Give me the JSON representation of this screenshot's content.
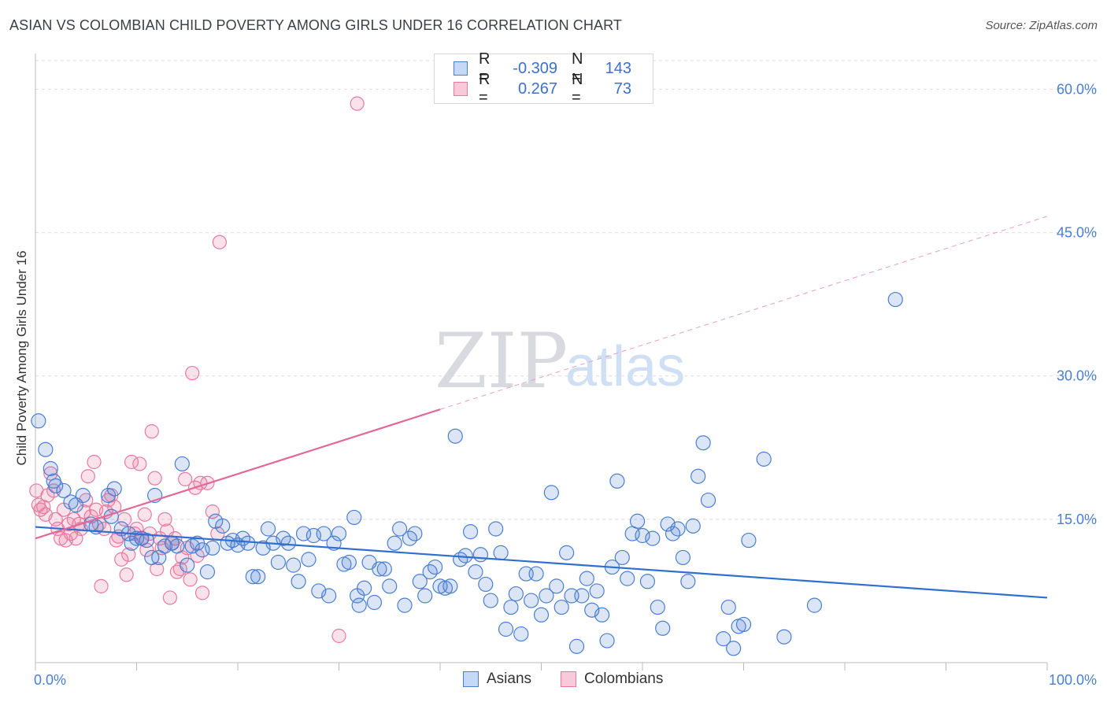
{
  "header": {
    "title": "ASIAN VS COLOMBIAN CHILD POVERTY AMONG GIRLS UNDER 16 CORRELATION CHART",
    "source": "Source: ZipAtlas.com"
  },
  "watermark": {
    "zip": "ZIP",
    "atlas": "atlas"
  },
  "legend": {
    "rows": [
      {
        "r_label": "R =",
        "r_value": "-0.309",
        "n_label": "N =",
        "n_value": "143",
        "color": "#4a7fd0"
      },
      {
        "r_label": "R =",
        "r_value": "0.267",
        "n_label": "N =",
        "n_value": "73",
        "color": "#e87aa0"
      }
    ]
  },
  "bottom_legend": [
    {
      "label": "Asians",
      "color": "#4a7fd0"
    },
    {
      "label": "Colombians",
      "color": "#e87aa0"
    }
  ],
  "chart_data": {
    "type": "scatter",
    "title": "ASIAN VS COLOMBIAN CHILD POVERTY AMONG GIRLS UNDER 16 CORRELATION CHART",
    "ylabel": "Child Poverty Among Girls Under 16",
    "xlabel": "",
    "xlim": [
      0,
      100
    ],
    "ylim": [
      0,
      63
    ],
    "x_tick_labels": [
      "0.0%",
      "100.0%"
    ],
    "y_ticks": [
      15,
      30,
      45,
      60
    ],
    "y_tick_labels": [
      "15.0%",
      "30.0%",
      "45.0%",
      "60.0%"
    ],
    "grid": true,
    "legend_position": "top-center",
    "colors": {
      "asians": "#4a7fd0",
      "colombians": "#e87aa0"
    },
    "series": [
      {
        "name": "Asians",
        "r": -0.309,
        "n": 143,
        "trend": {
          "x": [
            0,
            100
          ],
          "y": [
            14.2,
            6.8
          ]
        },
        "points": [
          [
            0.3,
            25.3
          ],
          [
            1.0,
            22.3
          ],
          [
            1.5,
            20.3
          ],
          [
            1.8,
            19.0
          ],
          [
            2.0,
            18.5
          ],
          [
            2.8,
            18.0
          ],
          [
            3.5,
            16.8
          ],
          [
            4.0,
            16.5
          ],
          [
            4.7,
            17.5
          ],
          [
            5.5,
            14.5
          ],
          [
            6.0,
            14.2
          ],
          [
            7.2,
            17.5
          ],
          [
            7.5,
            15.3
          ],
          [
            7.8,
            18.2
          ],
          [
            8.5,
            14.0
          ],
          [
            9.2,
            13.5
          ],
          [
            9.5,
            12.5
          ],
          [
            10.0,
            13.0
          ],
          [
            10.5,
            13.0
          ],
          [
            11.0,
            12.8
          ],
          [
            11.5,
            11.0
          ],
          [
            11.8,
            17.5
          ],
          [
            12.2,
            11.0
          ],
          [
            12.8,
            12.2
          ],
          [
            13.5,
            12.5
          ],
          [
            14.0,
            12.2
          ],
          [
            14.5,
            20.8
          ],
          [
            15.0,
            10.2
          ],
          [
            15.5,
            12.2
          ],
          [
            16.0,
            12.5
          ],
          [
            16.5,
            11.8
          ],
          [
            17.0,
            9.5
          ],
          [
            17.5,
            12.0
          ],
          [
            17.8,
            14.8
          ],
          [
            18.5,
            14.3
          ],
          [
            19.0,
            12.5
          ],
          [
            19.5,
            12.8
          ],
          [
            20.0,
            12.3
          ],
          [
            20.5,
            13.0
          ],
          [
            21.0,
            12.5
          ],
          [
            21.5,
            9.0
          ],
          [
            22.0,
            9.0
          ],
          [
            22.5,
            12.0
          ],
          [
            23.0,
            14.0
          ],
          [
            23.5,
            12.5
          ],
          [
            24.0,
            10.5
          ],
          [
            24.5,
            13.0
          ],
          [
            25.0,
            12.5
          ],
          [
            25.5,
            10.2
          ],
          [
            26.0,
            8.5
          ],
          [
            26.5,
            13.5
          ],
          [
            27.0,
            10.8
          ],
          [
            27.5,
            13.3
          ],
          [
            28.0,
            7.5
          ],
          [
            28.5,
            13.5
          ],
          [
            29.0,
            7.0
          ],
          [
            29.5,
            12.5
          ],
          [
            30.0,
            13.5
          ],
          [
            30.5,
            10.3
          ],
          [
            31.0,
            10.5
          ],
          [
            31.5,
            15.2
          ],
          [
            31.8,
            7.0
          ],
          [
            32.0,
            6.0
          ],
          [
            32.5,
            7.8
          ],
          [
            33.0,
            10.5
          ],
          [
            33.5,
            6.3
          ],
          [
            34.0,
            9.8
          ],
          [
            34.5,
            9.8
          ],
          [
            35.0,
            8.0
          ],
          [
            35.5,
            12.5
          ],
          [
            36.0,
            14.0
          ],
          [
            36.5,
            6.0
          ],
          [
            37.0,
            13.0
          ],
          [
            37.5,
            13.5
          ],
          [
            38.0,
            8.5
          ],
          [
            38.5,
            7.0
          ],
          [
            39.0,
            9.5
          ],
          [
            39.5,
            10.0
          ],
          [
            40.0,
            8.0
          ],
          [
            40.5,
            7.8
          ],
          [
            41.0,
            8.0
          ],
          [
            41.5,
            23.7
          ],
          [
            42.0,
            10.8
          ],
          [
            42.5,
            11.2
          ],
          [
            43.0,
            13.7
          ],
          [
            43.5,
            9.5
          ],
          [
            44.0,
            11.3
          ],
          [
            44.5,
            8.2
          ],
          [
            45.0,
            6.5
          ],
          [
            45.5,
            14.0
          ],
          [
            46.0,
            11.5
          ],
          [
            46.5,
            3.5
          ],
          [
            47.0,
            5.8
          ],
          [
            47.5,
            7.2
          ],
          [
            48.0,
            3.0
          ],
          [
            48.5,
            9.3
          ],
          [
            49.0,
            6.5
          ],
          [
            49.5,
            9.3
          ],
          [
            50.0,
            5.0
          ],
          [
            50.5,
            7.0
          ],
          [
            51.0,
            17.8
          ],
          [
            51.5,
            8.0
          ],
          [
            52.0,
            5.8
          ],
          [
            52.5,
            11.5
          ],
          [
            53.0,
            7.0
          ],
          [
            53.5,
            1.7
          ],
          [
            54.0,
            7.0
          ],
          [
            54.5,
            8.8
          ],
          [
            55.0,
            5.5
          ],
          [
            55.5,
            7.5
          ],
          [
            56.0,
            5.0
          ],
          [
            56.5,
            2.3
          ],
          [
            57.0,
            10.0
          ],
          [
            57.5,
            19.0
          ],
          [
            58.0,
            11.0
          ],
          [
            58.5,
            8.8
          ],
          [
            59.0,
            13.5
          ],
          [
            59.5,
            14.8
          ],
          [
            60.0,
            13.3
          ],
          [
            60.5,
            8.5
          ],
          [
            61.0,
            13.0
          ],
          [
            61.5,
            5.8
          ],
          [
            62.0,
            3.6
          ],
          [
            62.5,
            14.5
          ],
          [
            63.0,
            13.5
          ],
          [
            63.5,
            14.0
          ],
          [
            64.0,
            11.0
          ],
          [
            64.5,
            8.5
          ],
          [
            65.0,
            14.3
          ],
          [
            65.5,
            19.5
          ],
          [
            66.0,
            23.0
          ],
          [
            66.5,
            17.0
          ],
          [
            68.0,
            2.5
          ],
          [
            68.5,
            5.8
          ],
          [
            69.0,
            1.5
          ],
          [
            69.5,
            3.8
          ],
          [
            70.0,
            4.0
          ],
          [
            70.5,
            12.8
          ],
          [
            72.0,
            21.3
          ],
          [
            74.0,
            2.7
          ],
          [
            77.0,
            6.0
          ],
          [
            85.0,
            38.0
          ]
        ]
      },
      {
        "name": "Colombians",
        "r": 0.267,
        "n": 73,
        "trend": {
          "x": [
            0,
            40
          ],
          "y": [
            13.0,
            26.5
          ]
        },
        "trend_extended": {
          "x": [
            40,
            100
          ],
          "y": [
            26.5,
            46.7
          ]
        },
        "points": [
          [
            0.1,
            18.0
          ],
          [
            0.3,
            16.5
          ],
          [
            0.5,
            16.0
          ],
          [
            0.8,
            16.3
          ],
          [
            1.0,
            15.5
          ],
          [
            1.2,
            17.5
          ],
          [
            1.5,
            19.8
          ],
          [
            1.8,
            18.0
          ],
          [
            2.0,
            15.0
          ],
          [
            2.2,
            14.0
          ],
          [
            2.5,
            13.0
          ],
          [
            2.8,
            16.0
          ],
          [
            3.0,
            12.8
          ],
          [
            3.3,
            14.5
          ],
          [
            3.5,
            13.5
          ],
          [
            3.8,
            15.0
          ],
          [
            4.0,
            13.0
          ],
          [
            4.3,
            14.5
          ],
          [
            4.5,
            14.0
          ],
          [
            4.8,
            15.8
          ],
          [
            5.0,
            17.0
          ],
          [
            5.2,
            19.5
          ],
          [
            5.5,
            15.3
          ],
          [
            5.8,
            21.0
          ],
          [
            6.0,
            16.0
          ],
          [
            6.3,
            14.5
          ],
          [
            6.5,
            8.0
          ],
          [
            6.8,
            14.0
          ],
          [
            7.0,
            15.8
          ],
          [
            7.2,
            17.0
          ],
          [
            7.5,
            17.5
          ],
          [
            7.8,
            16.3
          ],
          [
            8.0,
            12.8
          ],
          [
            8.2,
            13.2
          ],
          [
            8.5,
            10.8
          ],
          [
            8.8,
            15.0
          ],
          [
            9.0,
            9.2
          ],
          [
            9.2,
            11.3
          ],
          [
            9.5,
            21.0
          ],
          [
            9.8,
            13.5
          ],
          [
            10.0,
            14.0
          ],
          [
            10.3,
            20.8
          ],
          [
            10.5,
            13.0
          ],
          [
            10.8,
            15.5
          ],
          [
            11.0,
            11.8
          ],
          [
            11.3,
            13.5
          ],
          [
            11.5,
            24.2
          ],
          [
            11.8,
            19.3
          ],
          [
            12.0,
            9.8
          ],
          [
            12.3,
            13.0
          ],
          [
            12.5,
            12.0
          ],
          [
            12.8,
            15.0
          ],
          [
            13.0,
            13.8
          ],
          [
            13.3,
            6.8
          ],
          [
            13.5,
            12.5
          ],
          [
            13.8,
            13.0
          ],
          [
            14.0,
            9.5
          ],
          [
            14.3,
            9.8
          ],
          [
            14.5,
            11.0
          ],
          [
            14.8,
            19.2
          ],
          [
            15.0,
            12.0
          ],
          [
            15.3,
            8.7
          ],
          [
            15.5,
            30.3
          ],
          [
            15.8,
            18.3
          ],
          [
            16.0,
            11.2
          ],
          [
            16.3,
            18.8
          ],
          [
            16.5,
            7.3
          ],
          [
            17.0,
            18.8
          ],
          [
            17.5,
            15.8
          ],
          [
            18.0,
            13.5
          ],
          [
            18.2,
            44.0
          ],
          [
            30.0,
            2.8
          ],
          [
            31.8,
            58.5
          ]
        ]
      }
    ]
  }
}
